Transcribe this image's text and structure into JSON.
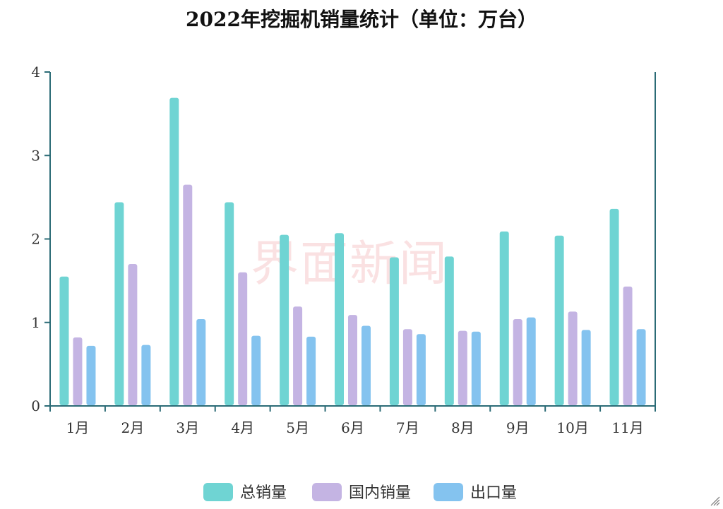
{
  "chart_data": {
    "type": "bar",
    "title": "2022年挖掘机销量统计（单位：万台）",
    "watermark": "界面新闻",
    "categories": [
      "1月",
      "2月",
      "3月",
      "4月",
      "5月",
      "6月",
      "7月",
      "8月",
      "9月",
      "10月",
      "11月"
    ],
    "series": [
      {
        "name": "总销量",
        "color": "#6fd4d3",
        "values": [
          1.55,
          2.44,
          3.69,
          2.44,
          2.05,
          2.07,
          1.78,
          1.79,
          2.09,
          2.04,
          2.36
        ]
      },
      {
        "name": "国内销量",
        "color": "#c4b4e3",
        "values": [
          0.82,
          1.7,
          2.65,
          1.6,
          1.19,
          1.09,
          0.92,
          0.9,
          1.04,
          1.13,
          1.43
        ]
      },
      {
        "name": "出口量",
        "color": "#84c3ef",
        "values": [
          0.72,
          0.73,
          1.04,
          0.84,
          0.83,
          0.96,
          0.86,
          0.89,
          1.06,
          0.91,
          0.92
        ]
      }
    ],
    "yticks": [
      "0",
      "1",
      "2",
      "3",
      "4"
    ],
    "ylim": [
      0,
      4
    ],
    "grid": false,
    "legend_position": "bottom"
  }
}
